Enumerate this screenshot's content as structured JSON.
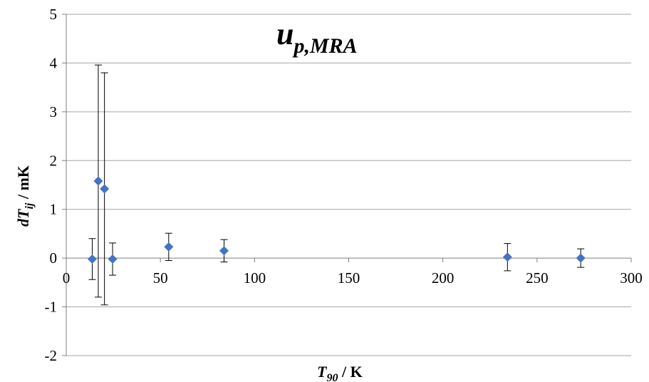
{
  "chart_data": {
    "type": "scatter",
    "title": {
      "main": "u",
      "sub": "p,MRA"
    },
    "xlabel": {
      "main": "T",
      "sub": "90",
      "unit": " / K"
    },
    "ylabel": {
      "main": "dT",
      "sub": "ij",
      "unit": " / mK"
    },
    "xlim": [
      0,
      300
    ],
    "ylim": [
      -2,
      5
    ],
    "xticks": [
      0,
      50,
      100,
      150,
      200,
      250,
      300
    ],
    "yticks": [
      -2,
      -1,
      0,
      1,
      2,
      3,
      4,
      5
    ],
    "grid": "horizontal",
    "legend": "none",
    "marker_color": "#4472C4",
    "points": [
      {
        "x": 13.8,
        "y": -0.02,
        "err": 0.42
      },
      {
        "x": 17.0,
        "y": 1.58,
        "err": 2.38
      },
      {
        "x": 20.3,
        "y": 1.42,
        "err": 2.38
      },
      {
        "x": 24.6,
        "y": -0.02,
        "err": 0.33
      },
      {
        "x": 54.4,
        "y": 0.23,
        "err": 0.28
      },
      {
        "x": 83.8,
        "y": 0.15,
        "err": 0.23
      },
      {
        "x": 234.3,
        "y": 0.02,
        "err": 0.28
      },
      {
        "x": 273.2,
        "y": 0.0,
        "err": 0.19
      }
    ]
  }
}
